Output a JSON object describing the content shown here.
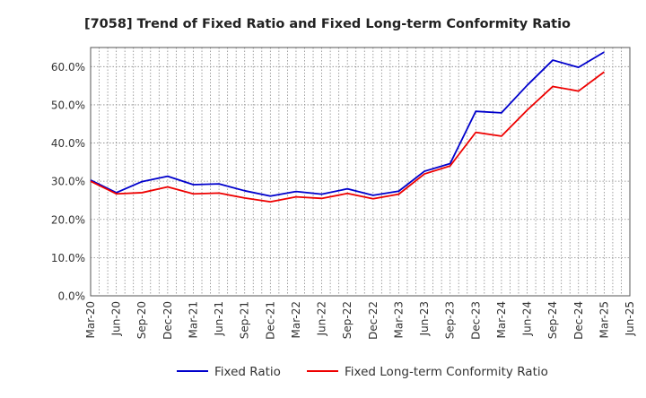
{
  "chart_data": {
    "type": "line",
    "title": "[7058]  Trend of Fixed Ratio and Fixed Long-term Conformity Ratio",
    "xlabel": "",
    "ylabel": "",
    "categories": [
      "Mar-20",
      "Jun-20",
      "Sep-20",
      "Dec-20",
      "Mar-21",
      "Jun-21",
      "Sep-21",
      "Dec-21",
      "Mar-22",
      "Jun-22",
      "Sep-22",
      "Dec-22",
      "Mar-23",
      "Jun-23",
      "Sep-23",
      "Dec-23",
      "Mar-24",
      "Jun-24",
      "Sep-24",
      "Dec-24",
      "Mar-25",
      "Jun-25"
    ],
    "ylim": [
      0,
      65
    ],
    "yticks": [
      0,
      10,
      20,
      30,
      40,
      50,
      60
    ],
    "ytick_labels": [
      "0.0%",
      "10.0%",
      "20.0%",
      "30.0%",
      "40.0%",
      "50.0%",
      "60.0%"
    ],
    "grid": true,
    "legend_position": "bottom",
    "series": [
      {
        "name": "Fixed Ratio",
        "color": "#0000cc",
        "values": [
          30.3,
          27.0,
          29.9,
          31.3,
          29.1,
          29.3,
          27.5,
          26.1,
          27.3,
          26.6,
          28.0,
          26.3,
          27.4,
          32.6,
          34.6,
          48.3,
          47.9,
          55.1,
          61.7,
          59.8,
          63.8,
          null
        ]
      },
      {
        "name": "Fixed Long-term Conformity Ratio",
        "color": "#ee0000",
        "values": [
          30.0,
          26.7,
          27.0,
          28.5,
          26.7,
          26.9,
          25.6,
          24.6,
          25.9,
          25.5,
          26.8,
          25.4,
          26.6,
          31.9,
          34.0,
          42.8,
          41.8,
          48.6,
          54.8,
          53.6,
          58.6,
          null
        ]
      }
    ]
  }
}
